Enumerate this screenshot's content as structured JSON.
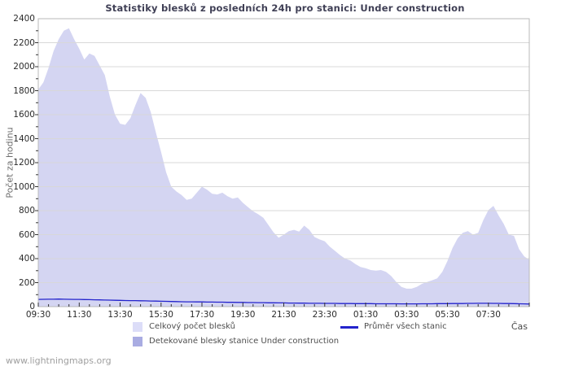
{
  "title": "Statistiky blesků z posledních 24h pro stanici: Under construction",
  "watermark": "www.lightningmaps.org",
  "legend": {
    "total_label": "Celkový počet blesků",
    "avg_label": "Průměr všech stanic",
    "detected_label": "Detekované blesky stanice Under construction"
  },
  "chart_data": {
    "type": "area",
    "title": "Statistiky blesků z posledních 24h pro stanici: Under construction",
    "ylabel": "Počet za hodinu",
    "xlabel": "Čas",
    "x_start": "09:30",
    "x_span_hours": 24,
    "sample_interval_minutes": 15,
    "x_tick_labels": [
      "09:30",
      "11:30",
      "13:30",
      "15:30",
      "17:30",
      "19:30",
      "21:30",
      "23:30",
      "01:30",
      "03:30",
      "05:30",
      "07:30"
    ],
    "y_ticks": [
      0,
      200,
      400,
      600,
      800,
      1000,
      1200,
      1400,
      1600,
      1800,
      2000,
      2200,
      2400
    ],
    "ylim": [
      0,
      2400
    ],
    "grid": "horizontal",
    "legend_position": "bottom",
    "colors": {
      "grid": "#d8d8d8",
      "border": "#b9b9b9",
      "tick": "#333333",
      "total_fill": "#d4d5f2",
      "total_legend_swatch": "#dcddf8",
      "detected_fill": "#a9ace2",
      "avg_line": "#2323cc",
      "title_text": "#3f3f55"
    },
    "series": [
      {
        "name": "Celkový počet blesků",
        "type": "area",
        "color": "#d4d5f2",
        "values": [
          1810,
          1870,
          1990,
          2130,
          2230,
          2300,
          2320,
          2230,
          2150,
          2060,
          2110,
          2090,
          2010,
          1930,
          1750,
          1600,
          1525,
          1515,
          1570,
          1680,
          1780,
          1740,
          1620,
          1450,
          1290,
          1120,
          1000,
          960,
          930,
          890,
          900,
          950,
          1000,
          975,
          940,
          935,
          950,
          920,
          900,
          910,
          865,
          830,
          795,
          770,
          740,
          680,
          620,
          575,
          600,
          630,
          640,
          625,
          675,
          640,
          580,
          560,
          545,
          500,
          465,
          430,
          400,
          385,
          355,
          330,
          320,
          305,
          300,
          305,
          290,
          255,
          205,
          165,
          150,
          150,
          165,
          190,
          205,
          220,
          235,
          290,
          380,
          490,
          570,
          615,
          630,
          600,
          615,
          720,
          805,
          840,
          760,
          690,
          600,
          590,
          480,
          420,
          390
        ]
      },
      {
        "name": "Detekované blesky stanice Under construction",
        "type": "area",
        "color": "#a9ace2",
        "values": [
          0,
          0,
          0,
          0,
          0,
          0,
          0,
          0,
          0,
          0,
          0,
          0,
          0,
          0,
          0,
          0,
          0,
          0,
          0,
          0,
          0,
          0,
          0,
          0,
          0,
          0,
          0,
          0,
          0,
          0,
          0,
          0,
          0,
          0,
          0,
          0,
          0,
          0,
          0,
          0,
          0,
          0,
          0,
          0,
          0,
          0,
          0,
          0,
          0,
          0,
          0,
          0,
          0,
          0,
          0,
          0,
          0,
          0,
          0,
          0,
          0,
          0,
          0,
          0,
          0,
          0,
          0,
          0,
          0,
          0,
          0,
          0,
          0,
          0,
          0,
          0,
          0,
          0,
          0,
          0,
          0,
          0,
          0,
          0,
          0,
          0,
          0,
          0,
          0,
          0,
          0,
          0,
          0,
          0,
          0,
          0,
          0
        ]
      },
      {
        "name": "Průměr všech stanic",
        "type": "line",
        "color": "#2323cc",
        "values": [
          60,
          61,
          62,
          62,
          63,
          62,
          61,
          60,
          60,
          59,
          58,
          57,
          56,
          55,
          54,
          53,
          52,
          51,
          50,
          50,
          49,
          48,
          47,
          46,
          45,
          44,
          43,
          42,
          41,
          40,
          40,
          39,
          39,
          38,
          38,
          37,
          37,
          36,
          36,
          35,
          35,
          34,
          34,
          33,
          33,
          32,
          32,
          31,
          31,
          30,
          30,
          29,
          29,
          28,
          28,
          28,
          27,
          27,
          27,
          26,
          26,
          26,
          25,
          25,
          25,
          25,
          24,
          24,
          24,
          24,
          24,
          23,
          23,
          23,
          23,
          24,
          24,
          24,
          25,
          25,
          25,
          26,
          26,
          26,
          27,
          27,
          28,
          28,
          28,
          27,
          27,
          26,
          26,
          25,
          24,
          23,
          22
        ]
      }
    ]
  }
}
